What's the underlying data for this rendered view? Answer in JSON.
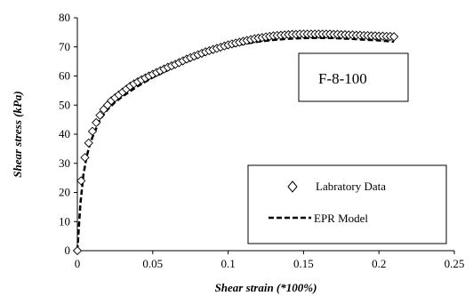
{
  "chart_data": {
    "type": "scatter",
    "xlabel": "Shear strain (*100%)",
    "ylabel": "Shear stress (kPa)",
    "xlim": [
      0,
      0.25
    ],
    "ylim": [
      0,
      80
    ],
    "x_ticks": [
      "0",
      "0.05",
      "0.1",
      "0.15",
      "0.2",
      "0.25"
    ],
    "y_ticks": [
      "0",
      "10",
      "20",
      "30",
      "40",
      "50",
      "60",
      "70",
      "80"
    ],
    "grid": false,
    "annotation": "F-8-100",
    "legend_position": "bottom-right",
    "series": [
      {
        "name": "Labratory Data",
        "marker": "diamond",
        "color": "#000000",
        "x": [
          0,
          0.0025,
          0.005,
          0.0075,
          0.01,
          0.0125,
          0.015,
          0.0175,
          0.02,
          0.0225,
          0.025,
          0.0275,
          0.03,
          0.0325,
          0.035,
          0.0375,
          0.04,
          0.0425,
          0.045,
          0.0475,
          0.05,
          0.0525,
          0.055,
          0.0575,
          0.06,
          0.0625,
          0.065,
          0.0675,
          0.07,
          0.0725,
          0.075,
          0.0775,
          0.08,
          0.0825,
          0.085,
          0.0875,
          0.09,
          0.0925,
          0.095,
          0.0975,
          0.1,
          0.1025,
          0.105,
          0.1075,
          0.11,
          0.1125,
          0.115,
          0.1175,
          0.12,
          0.1225,
          0.125,
          0.1275,
          0.13,
          0.1325,
          0.135,
          0.1375,
          0.14,
          0.1425,
          0.145,
          0.1475,
          0.15,
          0.1525,
          0.155,
          0.1575,
          0.16,
          0.1625,
          0.165,
          0.1675,
          0.17,
          0.1725,
          0.175,
          0.1775,
          0.18,
          0.1825,
          0.185,
          0.1875,
          0.19,
          0.1925,
          0.195,
          0.1975,
          0.2,
          0.2025,
          0.205,
          0.2075,
          0.21
        ],
        "y": [
          0,
          24,
          32,
          37,
          41,
          44,
          46.5,
          48.5,
          50,
          51.5,
          52.5,
          53.5,
          54.5,
          55.5,
          56.5,
          57.3,
          58,
          58.7,
          59.3,
          60,
          60.6,
          61.2,
          61.8,
          62.4,
          63,
          63.5,
          64,
          64.6,
          65.2,
          65.8,
          66.3,
          66.8,
          67.3,
          67.8,
          68.3,
          68.7,
          69.1,
          69.5,
          69.9,
          70.3,
          70.7,
          71,
          71.3,
          71.6,
          71.9,
          72.2,
          72.5,
          72.8,
          73,
          73.2,
          73.4,
          73.6,
          73.8,
          73.9,
          74,
          74.1,
          74.2,
          74.3,
          74.3,
          74.4,
          74.4,
          74.4,
          74.4,
          74.4,
          74.4,
          74.4,
          74.4,
          74.4,
          74.3,
          74.3,
          74.2,
          74.2,
          74.1,
          74.1,
          74,
          74,
          73.9,
          73.9,
          73.8,
          73.8,
          73.7,
          73.7,
          73.6,
          73.6,
          73.5
        ]
      },
      {
        "name": "EPR Model",
        "line_style": "dashed",
        "color": "#000000",
        "x": [
          0,
          0.002,
          0.004,
          0.006,
          0.008,
          0.01,
          0.015,
          0.02,
          0.025,
          0.03,
          0.04,
          0.05,
          0.06,
          0.07,
          0.08,
          0.09,
          0.1,
          0.11,
          0.12,
          0.13,
          0.14,
          0.15,
          0.16,
          0.17,
          0.18,
          0.19,
          0.2,
          0.21
        ],
        "y": [
          0,
          16,
          26,
          32,
          36,
          39,
          45,
          48.5,
          51,
          53,
          56.5,
          59.5,
          62,
          64.5,
          66.5,
          68.5,
          70,
          71,
          71.8,
          72.4,
          72.8,
          73,
          73.1,
          73,
          72.8,
          72.5,
          72.2,
          71.8
        ]
      }
    ]
  }
}
